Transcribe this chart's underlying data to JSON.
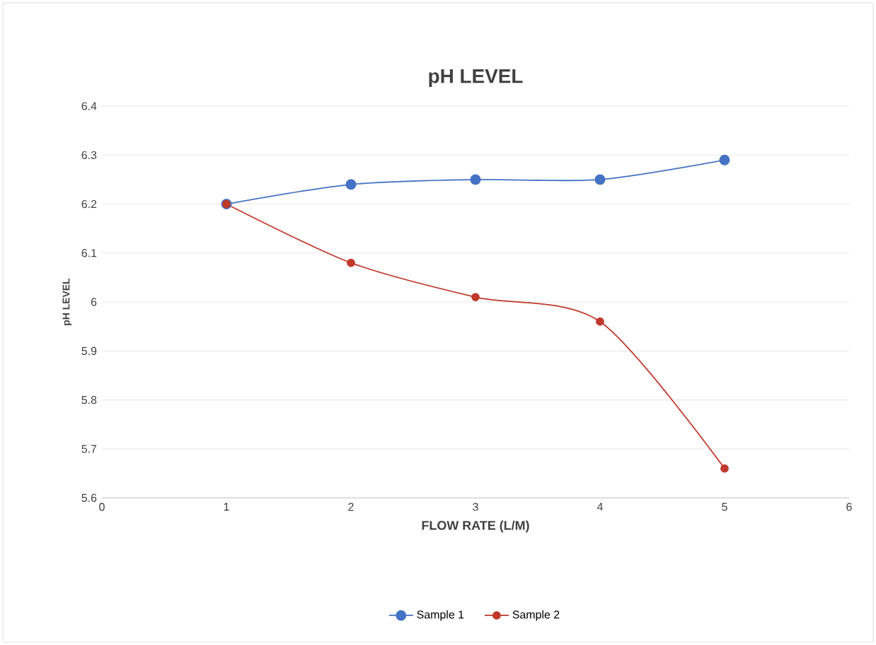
{
  "chart_data": {
    "type": "line",
    "title": "pH LEVEL",
    "xlabel": "FLOW RATE (L/M)",
    "ylabel": "pH LEVEL",
    "x": [
      1,
      2,
      3,
      4,
      5
    ],
    "series": [
      {
        "name": "Sample 1",
        "color": "#4472c4",
        "values": [
          6.2,
          6.24,
          6.25,
          6.25,
          6.29
        ]
      },
      {
        "name": "Sample 2",
        "color": "#c0392b",
        "values": [
          6.2,
          6.08,
          6.01,
          5.96,
          5.66
        ]
      }
    ],
    "xlim": [
      0,
      6
    ],
    "xticks": [
      0,
      1,
      2,
      3,
      4,
      5,
      6
    ],
    "ylim": [
      5.6,
      6.4
    ],
    "yticks": [
      5.6,
      5.7,
      5.8,
      5.9,
      6,
      6.1,
      6.2,
      6.3,
      6.4
    ],
    "grid": "y",
    "legend": "bottom",
    "marker": "circle",
    "line_style": "solid"
  }
}
